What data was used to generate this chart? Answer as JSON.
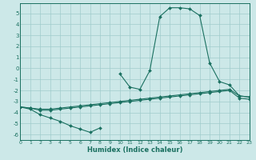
{
  "xlabel": "Humidex (Indice chaleur)",
  "bg_color": "#cce8e8",
  "line_color": "#1a7060",
  "grid_color": "#a0cccc",
  "curve1_x": [
    0,
    1,
    2,
    3,
    4,
    5,
    6,
    7,
    8,
    9,
    10,
    11,
    12,
    13,
    14,
    15,
    16,
    17,
    18,
    19,
    20,
    21,
    22,
    23
  ],
  "curve1_y": [
    -3.5,
    -3.7,
    -4.2,
    -4.5,
    -4.8,
    -5.2,
    -5.5,
    -5.8,
    -5.4,
    null,
    -0.5,
    -1.7,
    -1.9,
    -0.2,
    4.7,
    5.5,
    5.5,
    5.4,
    4.8,
    0.5,
    -1.2,
    -1.5,
    -2.5,
    -2.6
  ],
  "curve2_x": [
    0,
    1,
    2,
    3,
    4,
    5,
    6,
    7,
    8,
    9,
    10,
    11,
    12,
    13,
    14,
    15,
    16,
    17,
    18,
    19,
    20,
    21,
    22,
    23
  ],
  "curve2_y": [
    -3.5,
    -3.6,
    -3.7,
    -3.7,
    -3.6,
    -3.5,
    -3.4,
    -3.3,
    -3.2,
    -3.1,
    -3.0,
    -2.9,
    -2.8,
    -2.7,
    -2.6,
    -2.5,
    -2.4,
    -2.3,
    -2.2,
    -2.1,
    -2.0,
    -1.9,
    -2.5,
    -2.6
  ],
  "curve3_x": [
    0,
    1,
    2,
    3,
    4,
    5,
    6,
    7,
    8,
    9,
    10,
    11,
    12,
    13,
    14,
    15,
    16,
    17,
    18,
    19,
    20,
    21,
    22,
    23
  ],
  "curve3_y": [
    -3.5,
    -3.6,
    -3.8,
    -3.8,
    -3.7,
    -3.6,
    -3.5,
    -3.4,
    -3.3,
    -3.2,
    -3.1,
    -3.0,
    -2.9,
    -2.8,
    -2.7,
    -2.6,
    -2.5,
    -2.4,
    -2.3,
    -2.2,
    -2.1,
    -2.0,
    -2.7,
    -2.8
  ],
  "xlim": [
    0,
    23
  ],
  "ylim": [
    -6.5,
    5.9
  ],
  "yticks": [
    5,
    4,
    3,
    2,
    1,
    0,
    -1,
    -2,
    -3,
    -4,
    -5,
    -6
  ],
  "xticks": [
    0,
    1,
    2,
    3,
    4,
    5,
    6,
    7,
    8,
    9,
    10,
    11,
    12,
    13,
    14,
    15,
    16,
    17,
    18,
    19,
    20,
    21,
    22,
    23
  ]
}
